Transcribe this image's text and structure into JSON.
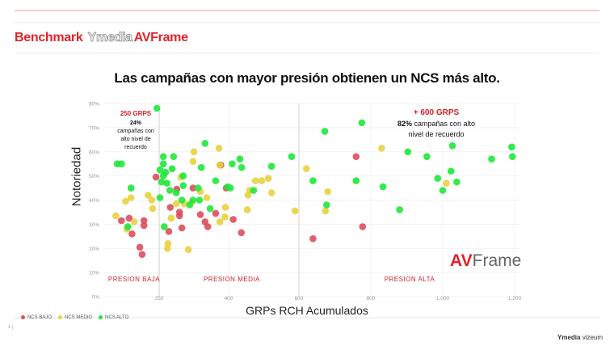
{
  "header": {
    "prefix": "Benchmark",
    "logo_text": "Ymedia",
    "suffix": "AVFrame"
  },
  "footer": {
    "page": "1 |",
    "brand_bold": "Ymedia",
    "brand_light": "vizeum"
  },
  "colors": {
    "bajo": "#dc4f5c",
    "medio": "#e8d23e",
    "alto": "#1ee83a",
    "accent": "#d61f26"
  },
  "chart_data": {
    "type": "scatter",
    "title": "Las campañas con mayor presión obtienen un NCS  más alto.",
    "xlabel": "GRPs RCH Acumulados",
    "ylabel": "Notoriedad",
    "xlim": [
      150,
      1220
    ],
    "ylim": [
      0,
      80
    ],
    "x_ticks": [
      "250",
      "400",
      "600",
      "800",
      "1.000",
      "1.200"
    ],
    "y_ticks": [
      "0%",
      "10%",
      "20%",
      "30%",
      "40%",
      "50%",
      "60%",
      "70%",
      "80%"
    ],
    "grid": true,
    "legend_position": "bottom-left",
    "legend": [
      "NCS BAJO",
      "NCS MEDIO",
      "NCS ALTO"
    ],
    "annotations": {
      "low_title": "250 GRPS",
      "low_pct": "24%",
      "low_l1": "campañas con",
      "low_l2": "alto nivel de",
      "low_l3": "recuerdo",
      "high_title": "+ 600 GRPS",
      "high_pct": "82%",
      "high_l1": " campañas con alto",
      "high_l2": "nivel de recuerdo",
      "zone_low": "PRESION BAJA",
      "zone_mid": "PRESION MEDIA",
      "zone_high": "PRESION ALTA",
      "logo_av": "AV",
      "logo_frame": "Frame"
    },
    "series": [
      {
        "name": "NCS BAJO",
        "key": "bajo",
        "points": [
          [
            168,
            31.5
          ],
          [
            185,
            32.5
          ],
          [
            191,
            26
          ],
          [
            208,
            20.5
          ],
          [
            213,
            17.5
          ],
          [
            217,
            31.5
          ],
          [
            217,
            29.5
          ],
          [
            243,
            49.5
          ],
          [
            288,
            44.5
          ],
          [
            274,
            37
          ],
          [
            294,
            35
          ],
          [
            294,
            33.5
          ],
          [
            271,
            27
          ],
          [
            299,
            28.5
          ],
          [
            323,
            45
          ],
          [
            339,
            34
          ],
          [
            349,
            31
          ],
          [
            355,
            29
          ],
          [
            372,
            34.5
          ],
          [
            383,
            54.5
          ],
          [
            395,
            45
          ],
          [
            413,
            32
          ],
          [
            436,
            26.5
          ],
          [
            639,
            24
          ],
          [
            759,
            58
          ],
          [
            777,
            29
          ]
        ]
      },
      {
        "name": "NCS MEDIO",
        "key": "medio",
        "points": [
          [
            156,
            33.5
          ],
          [
            177,
            39.5
          ],
          [
            189,
            41
          ],
          [
            180,
            28
          ],
          [
            196,
            31
          ],
          [
            226,
            42
          ],
          [
            234,
            40
          ],
          [
            236,
            36.5
          ],
          [
            269,
            22
          ],
          [
            268,
            20
          ],
          [
            276,
            32.5
          ],
          [
            287,
            38.5
          ],
          [
            297,
            49.5
          ],
          [
            304,
            38.5
          ],
          [
            313,
            19.5
          ],
          [
            325,
            60
          ],
          [
            323,
            56
          ],
          [
            320,
            39
          ],
          [
            339,
            43.5
          ],
          [
            353,
            41
          ],
          [
            379,
            61.5
          ],
          [
            381,
            54.5
          ],
          [
            381,
            31
          ],
          [
            392,
            33
          ],
          [
            393,
            37
          ],
          [
            476,
            48
          ],
          [
            494,
            48
          ],
          [
            513,
            49
          ],
          [
            522,
            43
          ],
          [
            455,
            42
          ],
          [
            460,
            44
          ],
          [
            453,
            36
          ],
          [
            589,
            35.5
          ],
          [
            621,
            53
          ],
          [
            680,
            43.5
          ],
          [
            674,
            35.5
          ],
          [
            830,
            61.5
          ],
          [
            1010,
            47
          ]
        ]
      },
      {
        "name": "NCS ALTO",
        "key": "alto",
        "points": [
          [
            245,
            78
          ],
          [
            159,
            55
          ],
          [
            168,
            55
          ],
          [
            189,
            45
          ],
          [
            182,
            29
          ],
          [
            259,
            58
          ],
          [
            259,
            55
          ],
          [
            252,
            52.5
          ],
          [
            281,
            58
          ],
          [
            264,
            51.5
          ],
          [
            278,
            53
          ],
          [
            259,
            50
          ],
          [
            255,
            47.5
          ],
          [
            267,
            47
          ],
          [
            252,
            41
          ],
          [
            273,
            44
          ],
          [
            287,
            43
          ],
          [
            302,
            50
          ],
          [
            302,
            46
          ],
          [
            299,
            40
          ],
          [
            316,
            38
          ],
          [
            323,
            40
          ],
          [
            261,
            29
          ],
          [
            349,
            63.5
          ],
          [
            341,
            53.5
          ],
          [
            334,
            45
          ],
          [
            337,
            40
          ],
          [
            360,
            36.5
          ],
          [
            372,
            48
          ],
          [
            398,
            45.5
          ],
          [
            405,
            45
          ],
          [
            410,
            55
          ],
          [
            432,
            57
          ],
          [
            437,
            53.5
          ],
          [
            471,
            44
          ],
          [
            522,
            54
          ],
          [
            579,
            58
          ],
          [
            639,
            48
          ],
          [
            672,
            68.5
          ],
          [
            775,
            72
          ],
          [
            759,
            48
          ],
          [
            677,
            38
          ],
          [
            834,
            45.5
          ],
          [
            880,
            36
          ],
          [
            903,
            60
          ],
          [
            956,
            58
          ],
          [
            1027,
            62.5
          ],
          [
            1023,
            52
          ],
          [
            986,
            49
          ],
          [
            1000,
            44
          ],
          [
            1039,
            47.5
          ],
          [
            1136,
            57
          ],
          [
            1192,
            62
          ],
          [
            1194,
            58
          ]
        ]
      }
    ]
  }
}
